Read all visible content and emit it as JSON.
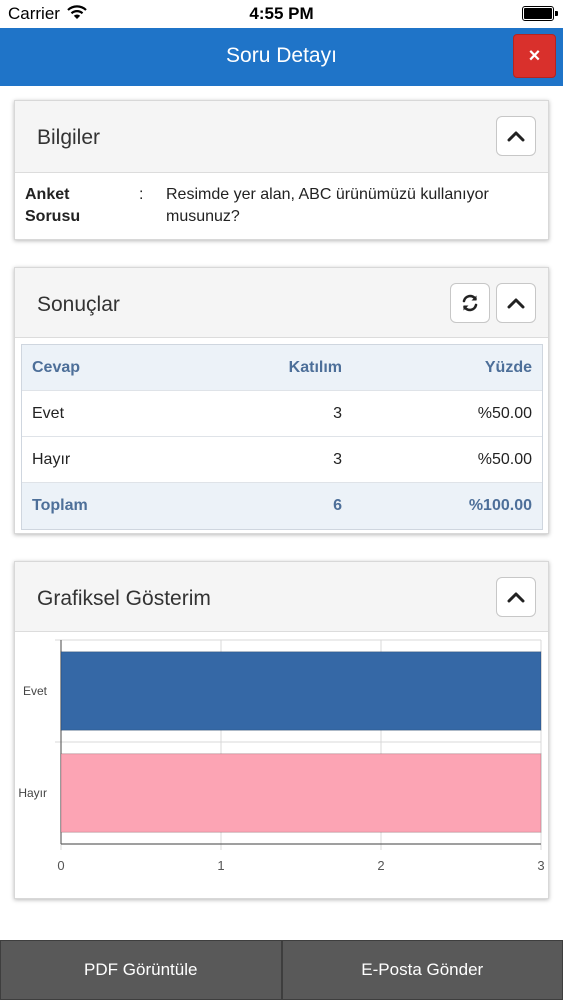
{
  "status_bar": {
    "carrier": "Carrier",
    "time": "4:55 PM"
  },
  "header": {
    "title": "Soru Detayı",
    "close_label": "×",
    "color": "#1f74c8",
    "close_color": "#d9302c"
  },
  "info_panel": {
    "title": "Bilgiler",
    "label": "Anket Sorusu",
    "colon": ":",
    "value": "Resimde yer alan, ABC ürünümüzü kullanıyor musunuz?"
  },
  "results_panel": {
    "title": "Sonuçlar",
    "columns": [
      "Cevap",
      "Katılım",
      "Yüzde"
    ],
    "rows": [
      [
        "Evet",
        "3",
        "%50.00"
      ],
      [
        "Hayır",
        "3",
        "%50.00"
      ]
    ],
    "total": [
      "Toplam",
      "6",
      "%100.00"
    ]
  },
  "chart_panel": {
    "title": "Grafiksel Gösterim"
  },
  "chart_data": {
    "type": "bar",
    "orientation": "horizontal",
    "categories": [
      "Evet",
      "Hayır"
    ],
    "values": [
      3,
      3
    ],
    "colors": [
      "#3568a6",
      "#fca4b4"
    ],
    "xlim": [
      0,
      3
    ],
    "xticks": [
      "0",
      "1",
      "2",
      "3"
    ],
    "grid": true
  },
  "footer": {
    "pdf_label": "PDF Görüntüle",
    "email_label": "E-Posta Gönder"
  },
  "icons": {
    "collapse": "chevron-up-icon",
    "refresh": "refresh-icon",
    "wifi": "wifi-icon",
    "battery": "battery-icon"
  }
}
